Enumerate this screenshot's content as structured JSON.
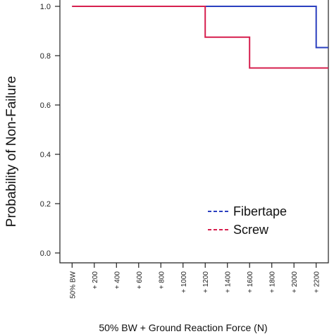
{
  "chart_data": {
    "type": "line",
    "step": true,
    "xlabel": "50% BW + Ground Reaction Force (N)",
    "ylabel": "Probability of Non-Failure",
    "x_tick_values": [
      0,
      200,
      400,
      600,
      800,
      1000,
      1200,
      1400,
      1600,
      1800,
      2000,
      2200
    ],
    "x_tick_labels": [
      "50% BW",
      "+ 200",
      "+ 400",
      "+ 600",
      "+ 800",
      "+ 1000",
      "+ 1200",
      "+ 1400",
      "+ 1600",
      "+ 1800",
      "+ 2000",
      "+ 2200"
    ],
    "y_tick_values": [
      0.0,
      0.2,
      0.4,
      0.6,
      0.8,
      1.0
    ],
    "y_tick_labels": [
      "0.0",
      "0.2",
      "0.4",
      "0.6",
      "0.8",
      "1.0"
    ],
    "xlim": [
      -110,
      2310
    ],
    "ylim": [
      -0.04,
      1.04
    ],
    "legend_position": "bottom-right",
    "series": [
      {
        "name": "Fibertape",
        "color": "#2a3fbf",
        "x": [
          0,
          2200,
          2200,
          2310
        ],
        "y": [
          1.0,
          1.0,
          0.833,
          0.833
        ]
      },
      {
        "name": "Screw",
        "color": "#d61f4e",
        "x": [
          0,
          1200,
          1200,
          1600,
          1600,
          2310
        ],
        "y": [
          1.0,
          1.0,
          0.875,
          0.875,
          0.75,
          0.75
        ]
      }
    ]
  }
}
